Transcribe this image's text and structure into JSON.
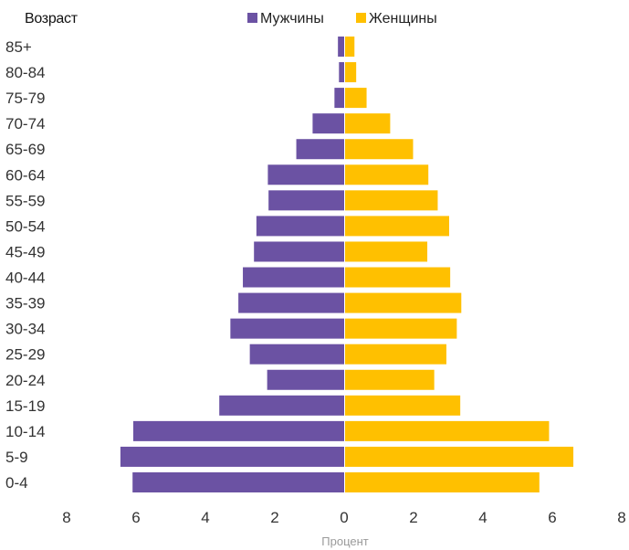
{
  "chart_data": {
    "type": "bar",
    "orientation": "horizontal",
    "subtype": "population-pyramid",
    "ylabel": "Возраст",
    "xlabel": "Процент",
    "categories": [
      "0-4",
      "5-9",
      "10-14",
      "15-19",
      "20-24",
      "25-29",
      "30-34",
      "35-39",
      "40-44",
      "45-49",
      "50-54",
      "55-59",
      "60-64",
      "65-69",
      "70-74",
      "75-79",
      "80-84",
      "85+"
    ],
    "series": [
      {
        "name": "Мужчины",
        "color": "#6b52a3",
        "values": [
          6.1,
          6.45,
          6.08,
          3.6,
          2.22,
          2.72,
          3.28,
          3.05,
          2.92,
          2.6,
          2.53,
          2.18,
          2.2,
          1.38,
          0.91,
          0.28,
          0.15,
          0.18
        ]
      },
      {
        "name": "Женщины",
        "color": "#ffc000",
        "values": [
          5.6,
          6.58,
          5.88,
          3.32,
          2.57,
          2.92,
          3.22,
          3.35,
          3.03,
          2.37,
          3.0,
          2.67,
          2.4,
          1.96,
          1.3,
          0.62,
          0.32,
          0.27
        ]
      }
    ],
    "xlim": [
      -8,
      8
    ],
    "xticks": [
      {
        "value": -8,
        "label": "8"
      },
      {
        "value": -6,
        "label": "6"
      },
      {
        "value": -4,
        "label": "4"
      },
      {
        "value": -2,
        "label": "2"
      },
      {
        "value": 0,
        "label": "0"
      },
      {
        "value": 2,
        "label": "2"
      },
      {
        "value": 4,
        "label": "4"
      },
      {
        "value": 6,
        "label": "6"
      },
      {
        "value": 8,
        "label": "8"
      }
    ],
    "legend_position": "top-center",
    "grid": false
  }
}
